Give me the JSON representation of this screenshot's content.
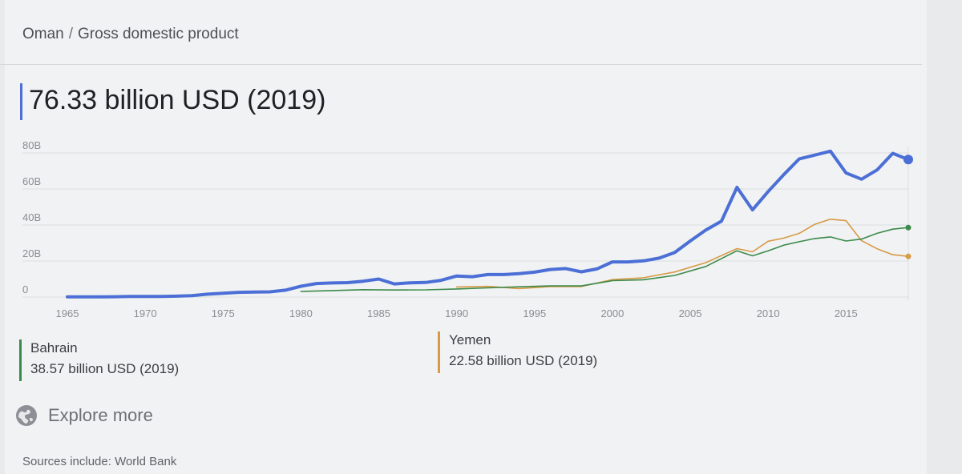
{
  "breadcrumb": {
    "country": "Oman",
    "separator": "/",
    "metric": "Gross domestic product"
  },
  "headline": "76.33 billion USD (2019)",
  "compare": [
    {
      "name": "Bahrain",
      "value": "38.57 billion USD (2019)",
      "color": "#3c8a4b"
    },
    {
      "name": "Yemen",
      "value": "22.58 billion USD (2019)",
      "color": "#d79a46"
    }
  ],
  "explore_label": "Explore more",
  "sources": "Sources include: World Bank",
  "chart_data": {
    "type": "line",
    "title": "",
    "xlabel": "",
    "ylabel": "",
    "xlim": [
      1965,
      2019
    ],
    "ylim": [
      0,
      80
    ],
    "y_ticks": [
      {
        "v": 0,
        "label": "0"
      },
      {
        "v": 20,
        "label": "20B"
      },
      {
        "v": 40,
        "label": "40B"
      },
      {
        "v": 60,
        "label": "60B"
      },
      {
        "v": 80,
        "label": "80B"
      }
    ],
    "x_ticks": [
      1965,
      1970,
      1975,
      1980,
      1985,
      1990,
      1995,
      2000,
      2005,
      2010,
      2015
    ],
    "grid": true,
    "series": [
      {
        "name": "Oman",
        "color": "#4b6fd6",
        "unit": "billion USD",
        "x": [
          1965,
          1966,
          1967,
          1968,
          1969,
          1970,
          1971,
          1972,
          1973,
          1974,
          1975,
          1976,
          1977,
          1978,
          1979,
          1980,
          1981,
          1982,
          1983,
          1984,
          1985,
          1986,
          1987,
          1988,
          1989,
          1990,
          1991,
          1992,
          1993,
          1994,
          1995,
          1996,
          1997,
          1998,
          1999,
          2000,
          2001,
          2002,
          2003,
          2004,
          2005,
          2006,
          2007,
          2008,
          2009,
          2010,
          2011,
          2012,
          2013,
          2014,
          2015,
          2016,
          2017,
          2018,
          2019
        ],
        "y": [
          0.07,
          0.08,
          0.1,
          0.2,
          0.3,
          0.3,
          0.35,
          0.5,
          0.8,
          1.6,
          2.1,
          2.6,
          2.8,
          2.9,
          3.8,
          6.0,
          7.5,
          7.8,
          8.0,
          8.8,
          10.0,
          7.3,
          7.9,
          8.1,
          9.3,
          11.7,
          11.3,
          12.5,
          12.5,
          13.0,
          13.8,
          15.3,
          15.8,
          14.0,
          15.6,
          19.5,
          19.5,
          20.1,
          21.6,
          24.7,
          31.1,
          37.2,
          42.1,
          60.9,
          48.4,
          58.6,
          67.9,
          76.7,
          78.8,
          81.0,
          68.9,
          65.4,
          70.6,
          79.8,
          76.33
        ],
        "end_marker": true
      },
      {
        "name": "Bahrain",
        "color": "#3c8a4b",
        "unit": "billion USD",
        "x": [
          1980,
          1982,
          1984,
          1986,
          1988,
          1990,
          1992,
          1994,
          1996,
          1998,
          2000,
          2002,
          2004,
          2006,
          2008,
          2009,
          2010,
          2011,
          2012,
          2013,
          2014,
          2015,
          2016,
          2017,
          2018,
          2019
        ],
        "y": [
          3.1,
          3.6,
          4.1,
          3.9,
          4.0,
          4.5,
          5.1,
          5.7,
          6.2,
          6.2,
          9.1,
          9.6,
          12.0,
          17.0,
          25.7,
          22.9,
          25.7,
          28.8,
          30.7,
          32.5,
          33.4,
          31.1,
          32.2,
          35.4,
          37.7,
          38.57
        ],
        "end_marker": true
      },
      {
        "name": "Yemen",
        "color": "#d79a46",
        "unit": "billion USD",
        "x": [
          1990,
          1992,
          1994,
          1996,
          1998,
          2000,
          2002,
          2004,
          2006,
          2008,
          2009,
          2010,
          2011,
          2012,
          2013,
          2014,
          2015,
          2016,
          2017,
          2018,
          2019
        ],
        "y": [
          5.6,
          5.9,
          4.7,
          5.8,
          5.8,
          9.7,
          10.7,
          13.9,
          19.1,
          26.9,
          25.1,
          31.0,
          32.7,
          35.4,
          40.4,
          43.2,
          42.4,
          31.3,
          26.8,
          23.5,
          22.58
        ],
        "end_marker": true
      }
    ]
  }
}
